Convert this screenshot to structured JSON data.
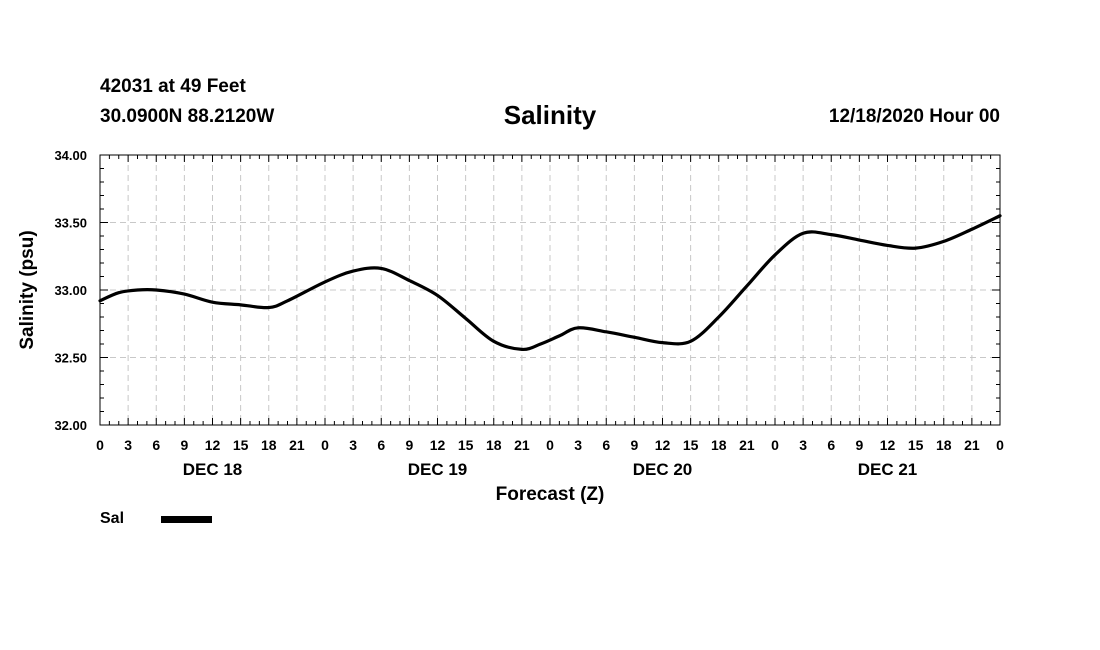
{
  "header": {
    "station": "42031 at 49 Feet",
    "coords": "30.0900N 88.2120W",
    "title": "Salinity",
    "run": "12/18/2020 Hour 00"
  },
  "legend": {
    "label": "Sal"
  },
  "chart_data": {
    "type": "line",
    "title": "Salinity",
    "xlabel": "Forecast (Z)",
    "ylabel": "Salinity (psu)",
    "xlim": [
      0,
      96
    ],
    "ylim": [
      32.0,
      34.0
    ],
    "yticks": [
      "32.00",
      "32.50",
      "33.00",
      "33.50",
      "34.00"
    ],
    "xtick_labels": [
      "0",
      "3",
      "6",
      "9",
      "12",
      "15",
      "18",
      "21",
      "0",
      "3",
      "6",
      "9",
      "12",
      "15",
      "18",
      "21",
      "0",
      "3",
      "6",
      "9",
      "12",
      "15",
      "18",
      "21",
      "0",
      "3",
      "6",
      "9",
      "12",
      "15",
      "18",
      "21",
      "0"
    ],
    "day_labels": [
      "DEC 18",
      "DEC 19",
      "DEC 20",
      "DEC 21"
    ],
    "series": [
      {
        "name": "Sal",
        "x": [
          0,
          2,
          4,
          6,
          9,
          12,
          15,
          18,
          20,
          24,
          27,
          30,
          33,
          36,
          39,
          42,
          45,
          47,
          49,
          51,
          54,
          57,
          60,
          63,
          66,
          69,
          72,
          75,
          78,
          81,
          84,
          87,
          90,
          93,
          96
        ],
        "y": [
          32.92,
          32.98,
          33.0,
          33.0,
          32.97,
          32.91,
          32.89,
          32.87,
          32.92,
          33.06,
          33.14,
          33.16,
          33.07,
          32.96,
          32.79,
          32.62,
          32.56,
          32.6,
          32.66,
          32.72,
          32.69,
          32.65,
          32.61,
          32.62,
          32.8,
          33.03,
          33.26,
          33.42,
          33.41,
          33.37,
          33.33,
          33.31,
          33.36,
          33.45,
          33.55
        ]
      }
    ]
  }
}
